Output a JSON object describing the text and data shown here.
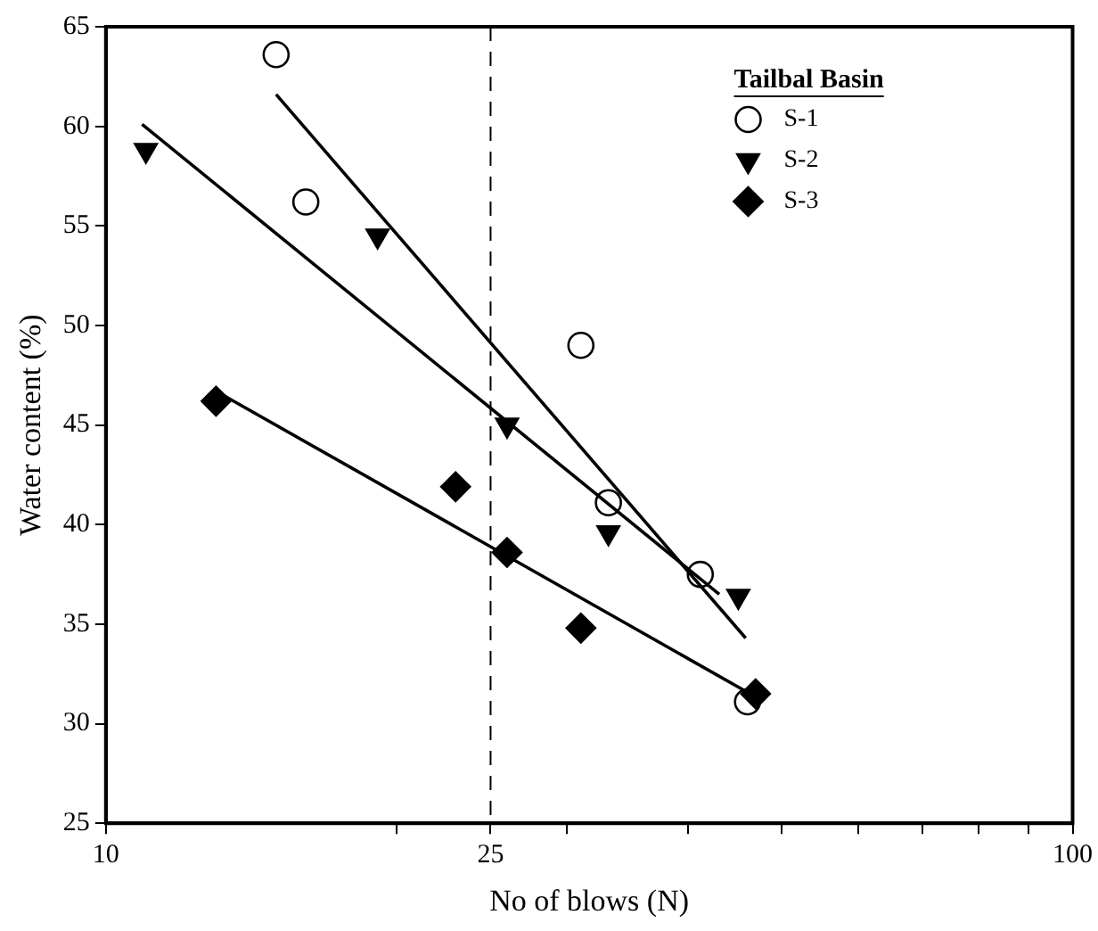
{
  "chart_data": {
    "type": "scatter",
    "xlabel": "No of blows (N)",
    "ylabel": "Water content (%)",
    "legend_title": "Tailbal Basin",
    "legend": "top right",
    "log": "x",
    "grid": false,
    "xlim": [
      10,
      100
    ],
    "xticks": [
      10,
      {
        "value": 20,
        "label": null
      },
      25,
      {
        "value": 30,
        "label": null
      },
      {
        "value": 40,
        "label": null
      },
      {
        "value": 50,
        "label": null
      },
      {
        "value": 60,
        "label": null
      },
      {
        "value": 70,
        "label": null
      },
      {
        "value": 80,
        "label": null
      },
      {
        "value": 90,
        "label": null
      },
      100
    ],
    "ylim": [
      25,
      65
    ],
    "yticks": [
      25,
      30,
      35,
      40,
      45,
      50,
      55,
      60,
      65
    ],
    "ref_lines": [
      {
        "axis": "x",
        "value": 25,
        "line_style": "dashed",
        "color": "#000000"
      }
    ],
    "series": [
      {
        "name": "S-1",
        "type": "scatter",
        "marker": "circle",
        "color": "#000000",
        "x": [
          15.0,
          16.1,
          31.0,
          33.1,
          41.2,
          46.1
        ],
        "values": [
          63.6,
          56.2,
          49.0,
          41.1,
          37.5,
          31.1
        ]
      },
      {
        "name": "S-2",
        "type": "scatter",
        "marker": "triangle",
        "color": "#000000",
        "x": [
          11.0,
          19.1,
          26.0,
          33.1,
          45.1
        ],
        "values": [
          58.8,
          54.5,
          45.0,
          39.6,
          36.4
        ]
      },
      {
        "name": "S-3",
        "type": "scatter",
        "marker": "diamond",
        "color": "#000000",
        "x": [
          13.0,
          23.0,
          26.0,
          31.0,
          47.0
        ],
        "values": [
          46.2,
          41.9,
          38.6,
          34.8,
          31.5
        ]
      },
      {
        "type": "line",
        "marker": "none",
        "color": "#000000",
        "x": [
          15.0,
          45.9
        ],
        "values": [
          61.6,
          34.3
        ]
      },
      {
        "type": "line",
        "marker": "none",
        "color": "#000000",
        "x": [
          10.9,
          43.1
        ],
        "values": [
          60.1,
          36.5
        ]
      },
      {
        "type": "line",
        "marker": "none",
        "color": "#000000",
        "x": [
          13.0,
          46.4
        ],
        "values": [
          46.7,
          31.5
        ]
      }
    ]
  }
}
